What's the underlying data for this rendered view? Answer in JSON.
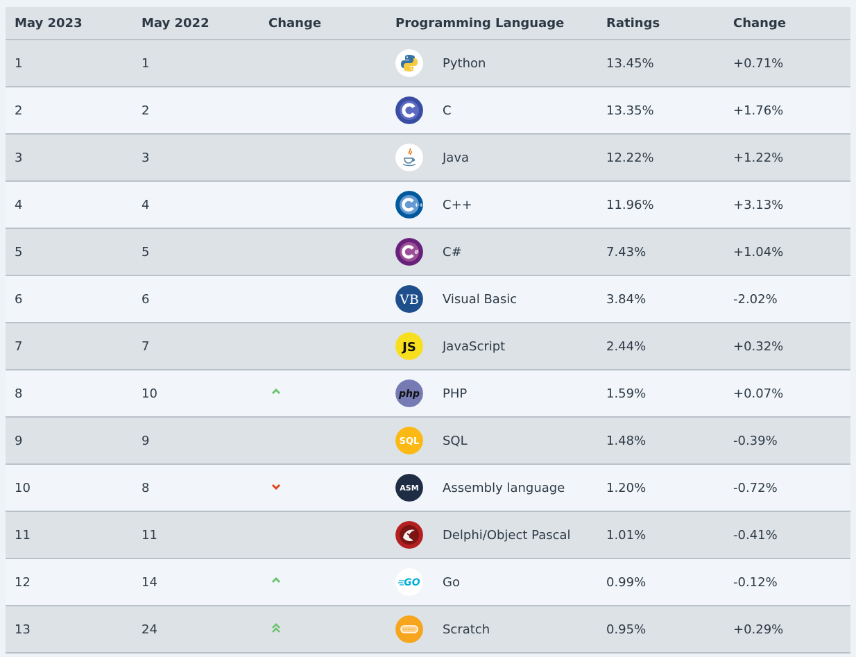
{
  "headers": [
    "May 2023",
    "May 2022",
    "Change",
    "Programming Language",
    "Ratings",
    "Change"
  ],
  "rows": [
    {
      "rank_2023": "1",
      "rank_2022": "1",
      "trend": "none",
      "language": "Python",
      "logo": "python-logo",
      "rating": "13.45%",
      "change": "+0.71%"
    },
    {
      "rank_2023": "2",
      "rank_2022": "2",
      "trend": "none",
      "language": "C",
      "logo": "c-logo",
      "rating": "13.35%",
      "change": "+1.76%"
    },
    {
      "rank_2023": "3",
      "rank_2022": "3",
      "trend": "none",
      "language": "Java",
      "logo": "java-logo",
      "rating": "12.22%",
      "change": "+1.22%"
    },
    {
      "rank_2023": "4",
      "rank_2022": "4",
      "trend": "none",
      "language": "C++",
      "logo": "cpp-logo",
      "rating": "11.96%",
      "change": "+3.13%"
    },
    {
      "rank_2023": "5",
      "rank_2022": "5",
      "trend": "none",
      "language": "C#",
      "logo": "csharp-logo",
      "rating": "7.43%",
      "change": "+1.04%"
    },
    {
      "rank_2023": "6",
      "rank_2022": "6",
      "trend": "none",
      "language": "Visual Basic",
      "logo": "vb-logo",
      "rating": "3.84%",
      "change": "-2.02%"
    },
    {
      "rank_2023": "7",
      "rank_2022": "7",
      "trend": "none",
      "language": "JavaScript",
      "logo": "js-logo",
      "rating": "2.44%",
      "change": "+0.32%"
    },
    {
      "rank_2023": "8",
      "rank_2022": "10",
      "trend": "up",
      "language": "PHP",
      "logo": "php-logo",
      "rating": "1.59%",
      "change": "+0.07%"
    },
    {
      "rank_2023": "9",
      "rank_2022": "9",
      "trend": "none",
      "language": "SQL",
      "logo": "sql-logo",
      "rating": "1.48%",
      "change": "-0.39%"
    },
    {
      "rank_2023": "10",
      "rank_2022": "8",
      "trend": "down",
      "language": "Assembly language",
      "logo": "asm-logo",
      "rating": "1.20%",
      "change": "-0.72%"
    },
    {
      "rank_2023": "11",
      "rank_2022": "11",
      "trend": "none",
      "language": "Delphi/Object Pascal",
      "logo": "delphi-logo",
      "rating": "1.01%",
      "change": "-0.41%"
    },
    {
      "rank_2023": "12",
      "rank_2022": "14",
      "trend": "up",
      "language": "Go",
      "logo": "go-logo",
      "rating": "0.99%",
      "change": "-0.12%"
    },
    {
      "rank_2023": "13",
      "rank_2022": "24",
      "trend": "double-up",
      "language": "Scratch",
      "logo": "scratch-logo",
      "rating": "0.95%",
      "change": "+0.29%"
    }
  ],
  "logo_text": {
    "vb-logo": "VB",
    "js-logo": "JS",
    "php-logo": "php",
    "sql-logo": "SQL",
    "asm-logo": "ASM",
    "go-logo": "GO"
  },
  "colors": {
    "header_bg": "#dde2e7",
    "row_odd_bg": "#dde2e7",
    "row_even_bg": "#f2f6fa",
    "up_arrow": "#6cc36f",
    "down_arrow": "#e0431d"
  }
}
